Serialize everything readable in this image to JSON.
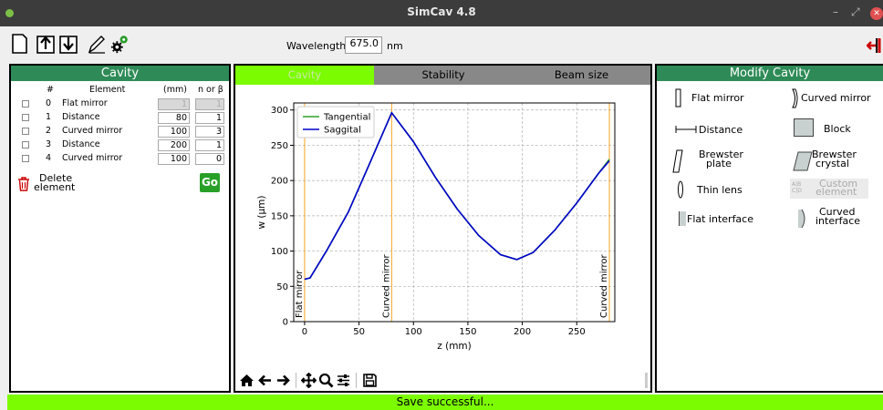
{
  "window": {
    "title": "SimCav 4.8",
    "minimize": "–",
    "maximize": "⤢",
    "close": "✕"
  },
  "toolbar": {
    "icons": [
      "new-file-icon",
      "upload-icon",
      "download-icon",
      "pencil-icon",
      "gears-icon"
    ],
    "wavelength_label": "Wavelength =",
    "wavelength_value": "675.0",
    "wavelength_unit": "nm",
    "exit_icon": "exit-icon"
  },
  "cavity": {
    "title": "Cavity",
    "headers": {
      "num": "#",
      "element": "Element",
      "mm": "(mm)",
      "n": "n or β"
    },
    "rows": [
      {
        "num": "0",
        "element": "Flat mirror",
        "mm": "1",
        "n": "1",
        "disabled": true
      },
      {
        "num": "1",
        "element": "Distance",
        "mm": "80",
        "n": "1",
        "disabled": false
      },
      {
        "num": "2",
        "element": "Curved mirror",
        "mm": "100",
        "n": "3",
        "disabled": false
      },
      {
        "num": "3",
        "element": "Distance",
        "mm": "200",
        "n": "1",
        "disabled": false
      },
      {
        "num": "4",
        "element": "Curved mirror",
        "mm": "100",
        "n": "0",
        "disabled": false
      }
    ],
    "delete_label_1": "Delete",
    "delete_label_2": "element",
    "go_label": "Go"
  },
  "tabs": [
    {
      "label": "Cavity",
      "active": true
    },
    {
      "label": "Stability",
      "active": false
    },
    {
      "label": "Beam size",
      "active": false
    }
  ],
  "plot_toolbar": [
    "home-icon",
    "back-arrow-icon",
    "forward-arrow-icon",
    "pan-icon",
    "zoom-icon",
    "configure-icon",
    "save-icon"
  ],
  "chart_data": {
    "type": "line",
    "xlabel": "z (mm)",
    "ylabel": "w (μm)",
    "xlim": [
      -10,
      285
    ],
    "ylim": [
      0,
      310
    ],
    "xticks": [
      0,
      50,
      100,
      150,
      200,
      250
    ],
    "yticks": [
      0,
      50,
      100,
      150,
      200,
      250,
      300
    ],
    "grid": true,
    "legend_position": "top-left",
    "series": [
      {
        "name": "Tangential",
        "color": "#2ca02c",
        "x": [
          0,
          5,
          20,
          40,
          60,
          80,
          100,
          120,
          140,
          160,
          180,
          195,
          210,
          230,
          250,
          270,
          280
        ],
        "y": [
          60,
          62,
          100,
          155,
          225,
          296,
          255,
          205,
          160,
          122,
          95,
          88,
          98,
          130,
          168,
          210,
          230
        ]
      },
      {
        "name": "Saggital",
        "color": "#0000cc",
        "x": [
          0,
          5,
          20,
          40,
          60,
          80,
          100,
          120,
          140,
          160,
          180,
          195,
          210,
          230,
          250,
          270,
          280
        ],
        "y": [
          60,
          62,
          100,
          155,
          225,
          296,
          255,
          205,
          160,
          122,
          95,
          88,
          98,
          130,
          168,
          210,
          228
        ]
      }
    ],
    "vlines": [
      {
        "x": 0,
        "label": "Flat mirror"
      },
      {
        "x": 80,
        "label": "Curved mirror"
      },
      {
        "x": 280,
        "label": "Curved mirror"
      }
    ],
    "vline_color": "#f5a623"
  },
  "modify": {
    "title": "Modify Cavity",
    "items": [
      {
        "name": "flat-mirror",
        "label": "Flat mirror"
      },
      {
        "name": "curved-mirror",
        "label": "Curved mirror"
      },
      {
        "name": "distance",
        "label": "Distance"
      },
      {
        "name": "block",
        "label": "Block"
      },
      {
        "name": "brewster-plate",
        "label_1": "Brewster",
        "label_2": "plate"
      },
      {
        "name": "brewster-crystal",
        "label_1": "Brewster",
        "label_2": "crystal"
      },
      {
        "name": "thin-lens",
        "label": "Thin lens"
      },
      {
        "name": "custom-element",
        "label_1": "Custom",
        "label_2": "element",
        "icon_text": "A|B C|D"
      },
      {
        "name": "flat-interface",
        "label": "Flat interface"
      },
      {
        "name": "curved-interface",
        "label_1": "Curved",
        "label_2": "interface"
      }
    ]
  },
  "status": {
    "text": "Save successful..."
  }
}
